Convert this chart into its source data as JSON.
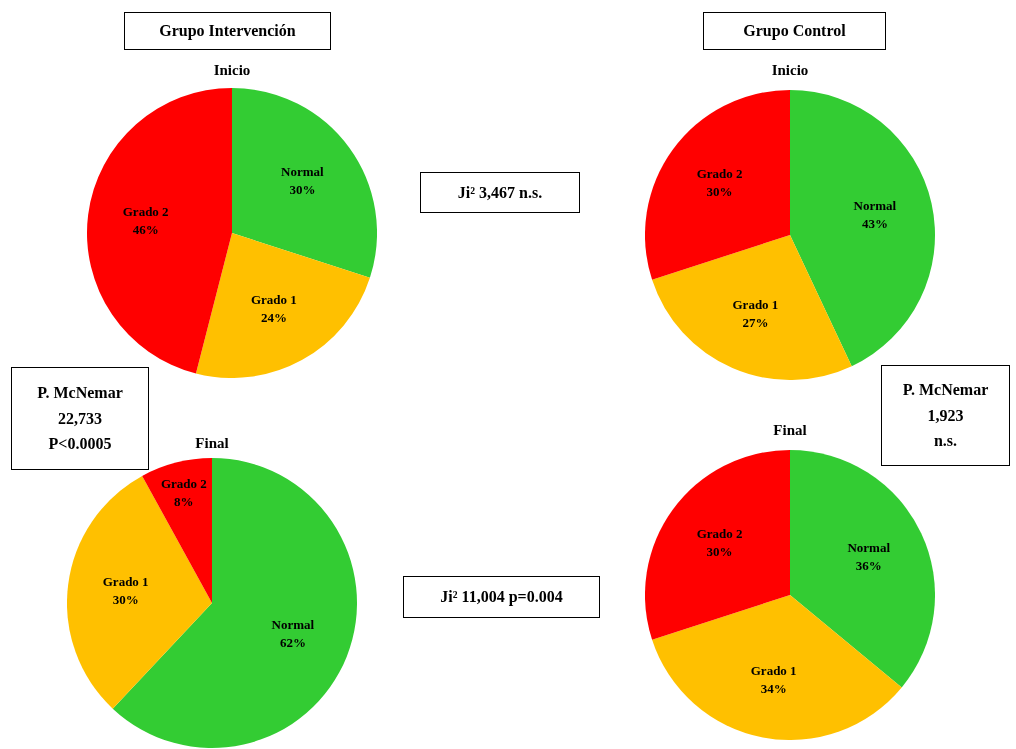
{
  "chart_data": [
    {
      "type": "pie",
      "title": "Inicio",
      "categories": [
        "Normal",
        "Grado 1",
        "Grado 2"
      ],
      "values": [
        30,
        24,
        46
      ],
      "value_labels": [
        "30%",
        "24%",
        "46%"
      ],
      "colors": [
        "#33cc33",
        "#ffc000",
        "#ff0000"
      ],
      "legend": false,
      "annotations": [
        "Grupo Intervención",
        "Ji² 3,467  n.s."
      ]
    },
    {
      "type": "pie",
      "title": "Inicio",
      "categories": [
        "Normal",
        "Grado 1",
        "Grado 2"
      ],
      "values": [
        43,
        27,
        30
      ],
      "value_labels": [
        "43%",
        "27%",
        "30%"
      ],
      "colors": [
        "#33cc33",
        "#ffc000",
        "#ff0000"
      ],
      "legend": false,
      "annotations": [
        "Grupo Control"
      ]
    },
    {
      "type": "pie",
      "title": "Final",
      "categories": [
        "Normal",
        "Grado 1",
        "Grado 2"
      ],
      "values": [
        62,
        30,
        8
      ],
      "value_labels": [
        "62%",
        "30%",
        "8%"
      ],
      "colors": [
        "#33cc33",
        "#ffc000",
        "#ff0000"
      ],
      "legend": false,
      "annotations": [
        "P. McNemar\n22,733\nP<0.0005",
        "Ji² 11,004  p=0.004"
      ]
    },
    {
      "type": "pie",
      "title": "Final",
      "categories": [
        "Normal",
        "Grado 1",
        "Grado 2"
      ],
      "values": [
        36,
        34,
        30
      ],
      "value_labels": [
        "36%",
        "34%",
        "30%"
      ],
      "colors": [
        "#33cc33",
        "#ffc000",
        "#ff0000"
      ],
      "legend": false,
      "annotations": [
        "P. McNemar\n1,923\nn.s."
      ]
    }
  ]
}
